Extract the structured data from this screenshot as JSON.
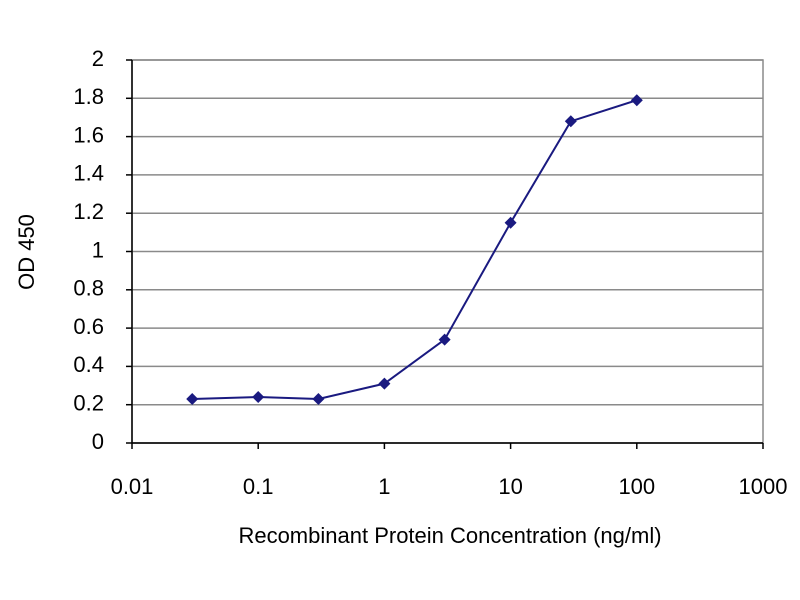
{
  "chart_data": {
    "type": "line",
    "x_label": "Recombinant Protein Concentration (ng/ml)",
    "y_label": "OD 450",
    "x": [
      0.03,
      0.1,
      0.3,
      1,
      3,
      10,
      30,
      100
    ],
    "series": [
      {
        "color": "#1a1a80",
        "values": [
          0.23,
          0.24,
          0.23,
          0.31,
          0.54,
          1.15,
          1.68,
          1.79
        ]
      }
    ],
    "x_log": true,
    "xlim": [
      0.01,
      1000
    ],
    "xticks": [
      0.01,
      0.1,
      1,
      10,
      100,
      1000
    ],
    "ylim": [
      0,
      2
    ],
    "yticks": [
      0,
      0.2,
      0.4,
      0.6,
      0.8,
      1,
      1.2,
      1.4,
      1.6,
      1.8,
      2
    ],
    "grid": true
  }
}
